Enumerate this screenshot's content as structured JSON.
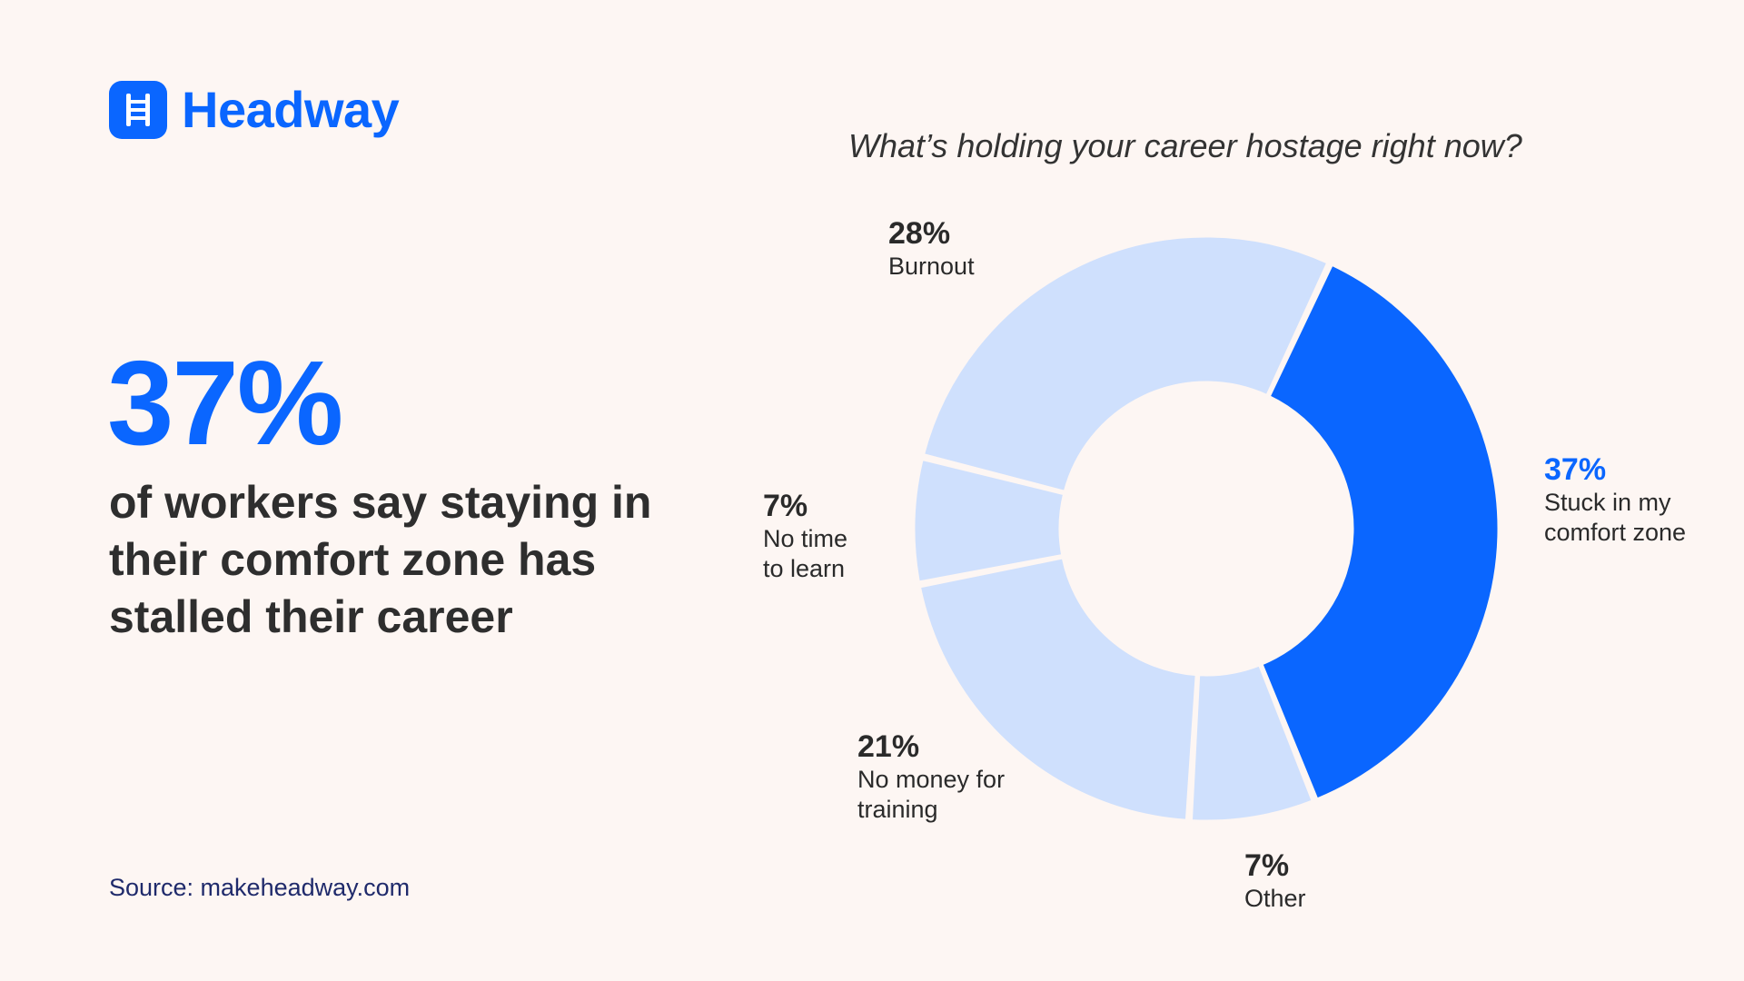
{
  "brand": {
    "name": "Headway",
    "color": "#0a66ff",
    "icon": "ladder-icon"
  },
  "headline": {
    "stat": "37%",
    "text": "of workers say staying in their comfort zone has stalled their career"
  },
  "source": "Source: makeheadway.com",
  "colors": {
    "highlight": "#0a66ff",
    "muted": "#cfe0fd",
    "background": "#fdf6f3"
  },
  "chart_data": {
    "type": "pie",
    "title": "What’s holding your career hostage right now?",
    "unit": "%",
    "slices": [
      {
        "label": "Stuck in my comfort zone",
        "value": 37,
        "display": "37%",
        "highlight": true
      },
      {
        "label": "Other",
        "value": 7,
        "display": "7%",
        "highlight": false
      },
      {
        "label": "No money for training",
        "value": 21,
        "display": "21%",
        "highlight": false
      },
      {
        "label": "No time to learn",
        "value": 7,
        "display": "7%",
        "highlight": false
      },
      {
        "label": "Burnout",
        "value": 28,
        "display": "28%",
        "highlight": false
      }
    ]
  }
}
